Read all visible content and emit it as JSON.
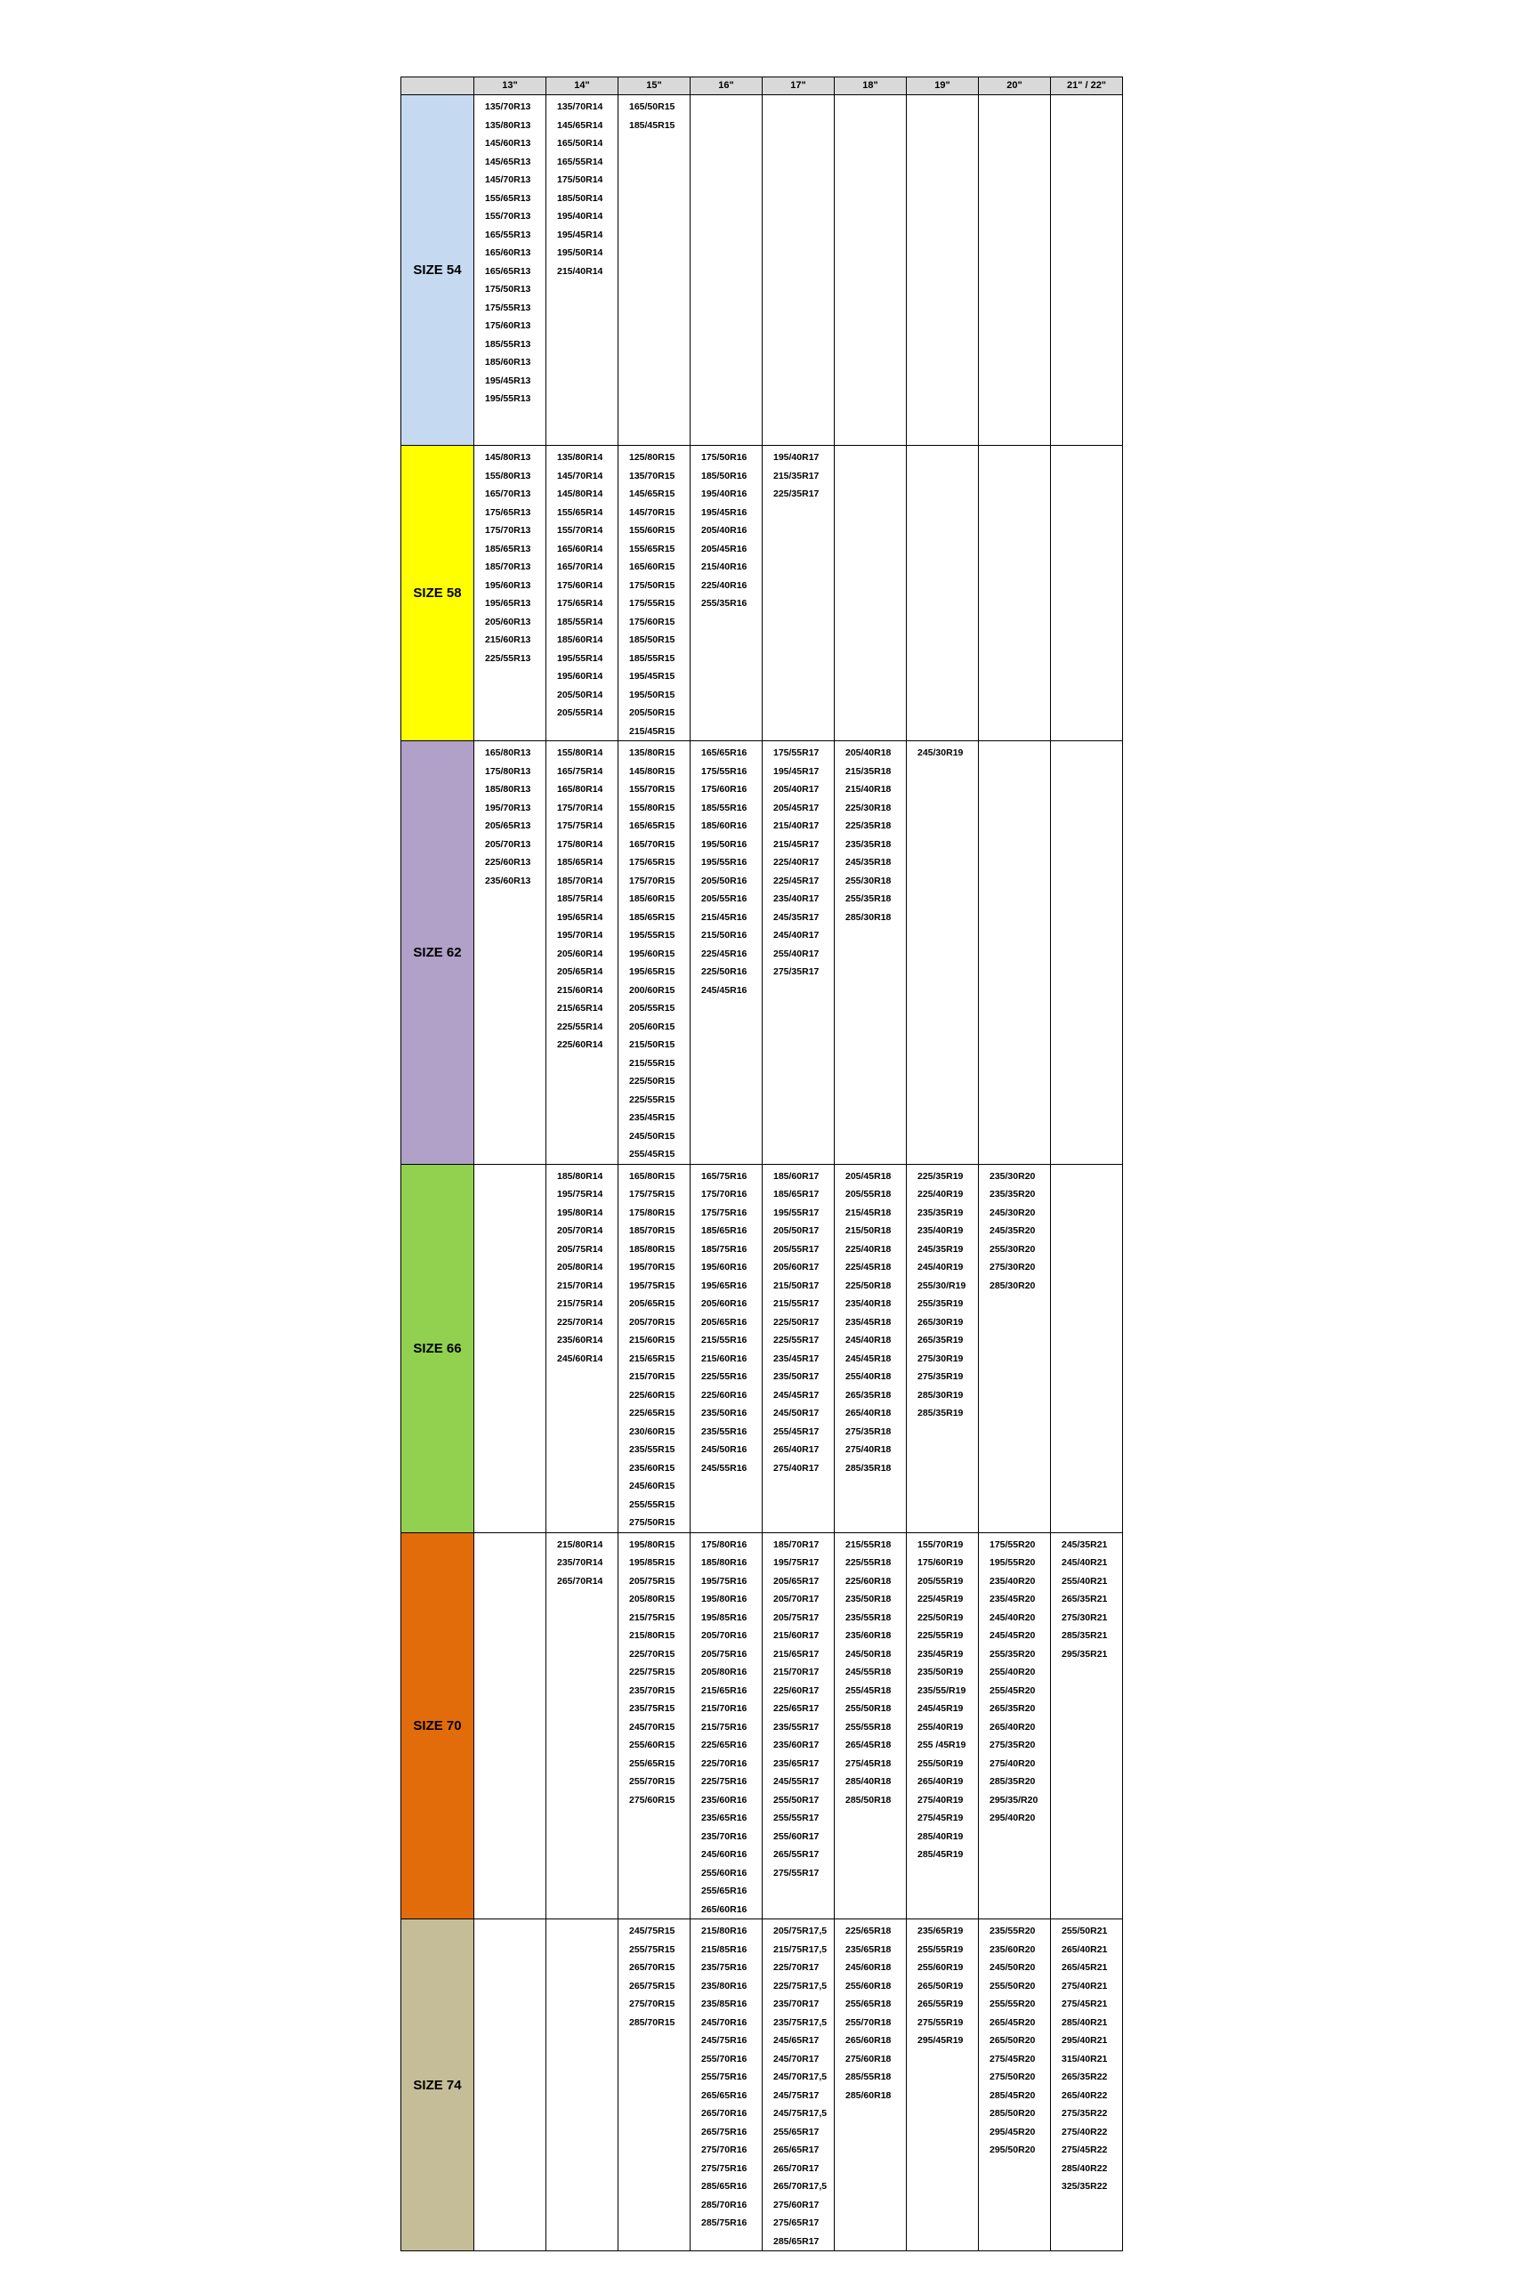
{
  "headers": [
    "",
    "13\"",
    "14\"",
    "15\"",
    "16\"",
    "17\"",
    "18\"",
    "19\"",
    "20\"",
    "21\" / 22\""
  ],
  "rows": [
    {
      "label": "SIZE 54",
      "color": "#c5d9f1",
      "cells": [
        [
          "135/70R13",
          "135/80R13",
          "145/60R13",
          "145/65R13",
          "145/70R13",
          "155/65R13",
          "155/70R13",
          "165/55R13",
          "165/60R13",
          "165/65R13",
          "175/50R13",
          "175/55R13",
          "175/60R13",
          "185/55R13",
          "185/60R13",
          "195/45R13",
          "195/55R13"
        ],
        [
          "135/70R14",
          "145/65R14",
          "165/50R14",
          "165/55R14",
          "175/50R14",
          "185/50R14",
          "195/40R14",
          "195/45R14",
          "195/50R14",
          "215/40R14"
        ],
        [
          "165/50R15",
          "185/45R15"
        ],
        [],
        [],
        [],
        [],
        [],
        []
      ]
    },
    {
      "label": "SIZE 58",
      "color": "#ffff00",
      "cells": [
        [
          "145/80R13",
          "155/80R13",
          "165/70R13",
          "175/65R13",
          "175/70R13",
          "185/65R13",
          "185/70R13",
          "195/60R13",
          "195/65R13",
          "205/60R13",
          "215/60R13",
          "225/55R13"
        ],
        [
          "135/80R14",
          "145/70R14",
          "145/80R14",
          "155/65R14",
          "155/70R14",
          "165/60R14",
          "165/70R14",
          "175/60R14",
          "175/65R14",
          "185/55R14",
          "185/60R14",
          "195/55R14",
          "195/60R14",
          "205/50R14",
          "205/55R14"
        ],
        [
          "125/80R15",
          "135/70R15",
          "145/65R15",
          "145/70R15",
          "155/60R15",
          "155/65R15",
          "165/60R15",
          "175/50R15",
          "175/55R15",
          "175/60R15",
          "185/50R15",
          "185/55R15",
          "195/45R15",
          "195/50R15",
          "205/50R15",
          "215/45R15"
        ],
        [
          "175/50R16",
          "185/50R16",
          "195/40R16",
          "195/45R16",
          "205/40R16",
          "205/45R16",
          "215/40R16",
          "225/40R16",
          "255/35R16"
        ],
        [
          "195/40R17",
          "215/35R17",
          "225/35R17"
        ],
        [],
        [],
        [],
        []
      ]
    },
    {
      "label": "SIZE 62",
      "color": "#b1a0c7",
      "cells": [
        [
          "165/80R13",
          "175/80R13",
          "185/80R13",
          "195/70R13",
          "205/65R13",
          "205/70R13",
          "225/60R13",
          "235/60R13"
        ],
        [
          "155/80R14",
          "165/75R14",
          "165/80R14",
          "175/70R14",
          "175/75R14",
          "175/80R14",
          "185/65R14",
          "185/70R14",
          "185/75R14",
          "195/65R14",
          "195/70R14",
          "205/60R14",
          "205/65R14",
          "215/60R14",
          "215/65R14",
          "225/55R14",
          "225/60R14"
        ],
        [
          "135/80R15",
          "145/80R15",
          "155/70R15",
          "155/80R15",
          "165/65R15",
          "165/70R15",
          "175/65R15",
          "175/70R15",
          "185/60R15",
          "185/65R15",
          "195/55R15",
          "195/60R15",
          "195/65R15",
          "200/60R15",
          "205/55R15",
          "205/60R15",
          "215/50R15",
          "215/55R15",
          "225/50R15",
          "225/55R15",
          "235/45R15",
          "245/50R15",
          "255/45R15"
        ],
        [
          "165/65R16",
          "175/55R16",
          "175/60R16",
          "185/55R16",
          "185/60R16",
          "195/50R16",
          "195/55R16",
          "205/50R16",
          "205/55R16",
          "215/45R16",
          "215/50R16",
          "225/45R16",
          "225/50R16",
          "245/45R16"
        ],
        [
          "175/55R17",
          "195/45R17",
          "205/40R17",
          "205/45R17",
          "215/40R17",
          "215/45R17",
          "225/40R17",
          "225/45R17",
          "235/40R17",
          "245/35R17",
          "245/40R17",
          "255/40R17",
          "275/35R17"
        ],
        [
          "205/40R18",
          "215/35R18",
          "215/40R18",
          "225/30R18",
          "225/35R18",
          "235/35R18",
          "245/35R18",
          "255/30R18",
          "255/35R18",
          "285/30R18"
        ],
        [
          "245/30R19"
        ],
        [],
        []
      ]
    },
    {
      "label": "SIZE 66",
      "color": "#92d050",
      "cells": [
        [],
        [
          "185/80R14",
          "195/75R14",
          "195/80R14",
          "205/70R14",
          "205/75R14",
          "205/80R14",
          "215/70R14",
          "215/75R14",
          "225/70R14",
          "235/60R14",
          "245/60R14"
        ],
        [
          "165/80R15",
          "175/75R15",
          "175/80R15",
          "185/70R15",
          "185/80R15",
          "195/70R15",
          "195/75R15",
          "205/65R15",
          "205/70R15",
          "215/60R15",
          "215/65R15",
          "215/70R15",
          "225/60R15",
          "225/65R15",
          "230/60R15",
          "235/55R15",
          "235/60R15",
          "245/60R15",
          "255/55R15",
          "275/50R15"
        ],
        [
          "165/75R16",
          "175/70R16",
          "175/75R16",
          "185/65R16",
          "185/75R16",
          "195/60R16",
          "195/65R16",
          "205/60R16",
          "205/65R16",
          "215/55R16",
          "215/60R16",
          "225/55R16",
          "225/60R16",
          "235/50R16",
          "235/55R16",
          "245/50R16",
          "245/55R16"
        ],
        [
          "185/60R17",
          "185/65R17",
          "195/55R17",
          "205/50R17",
          "205/55R17",
          "205/60R17",
          "215/50R17",
          "215/55R17",
          "225/50R17",
          "225/55R17",
          "235/45R17",
          "235/50R17",
          "245/45R17",
          "245/50R17",
          "255/45R17",
          "265/40R17",
          "275/40R17"
        ],
        [
          "205/45R18",
          "205/55R18",
          "215/45R18",
          "215/50R18",
          "225/40R18",
          "225/45R18",
          "225/50R18",
          "235/40R18",
          "235/45R18",
          "245/40R18",
          "245/45R18",
          "255/40R18",
          "265/35R18",
          "265/40R18",
          "275/35R18",
          "275/40R18",
          "285/35R18"
        ],
        [
          "225/35R19",
          "225/40R19",
          "235/35R19",
          "235/40R19",
          "245/35R19",
          "245/40R19",
          "255/30/R19",
          "255/35R19",
          "265/30R19",
          "265/35R19",
          "275/30R19",
          "275/35R19",
          "285/30R19",
          "285/35R19"
        ],
        [
          "235/30R20",
          "235/35R20",
          "245/30R20",
          "245/35R20",
          "255/30R20",
          "275/30R20",
          "285/30R20"
        ],
        []
      ]
    },
    {
      "label": "SIZE 70",
      "color": "#e26b0a",
      "cells": [
        [],
        [
          "215/80R14",
          "235/70R14",
          "265/70R14"
        ],
        [
          "195/80R15",
          "195/85R15",
          "205/75R15",
          "205/80R15",
          "215/75R15",
          "215/80R15",
          "225/70R15",
          "225/75R15",
          "235/70R15",
          "235/75R15",
          "245/70R15",
          "255/60R15",
          "255/65R15",
          "255/70R15",
          "275/60R15"
        ],
        [
          "175/80R16",
          "185/80R16",
          "195/75R16",
          "195/80R16",
          "195/85R16",
          "205/70R16",
          "205/75R16",
          "205/80R16",
          "215/65R16",
          "215/70R16",
          "215/75R16",
          "225/65R16",
          "225/70R16",
          "225/75R16",
          "235/60R16",
          "235/65R16",
          "235/70R16",
          "245/60R16",
          "255/60R16",
          "255/65R16",
          "265/60R16"
        ],
        [
          "185/70R17",
          "195/75R17",
          "205/65R17",
          "205/70R17",
          "205/75R17",
          "215/60R17",
          "215/65R17",
          "215/70R17",
          "225/60R17",
          "225/65R17",
          "235/55R17",
          "235/60R17",
          "235/65R17",
          "245/55R17",
          "255/50R17",
          "255/55R17",
          "255/60R17",
          "265/55R17",
          "275/55R17"
        ],
        [
          "215/55R18",
          "225/55R18",
          "225/60R18",
          "235/50R18",
          "235/55R18",
          "235/60R18",
          "245/50R18",
          "245/55R18",
          "255/45R18",
          "255/50R18",
          "255/55R18",
          "265/45R18",
          "275/45R18",
          "285/40R18",
          "285/50R18"
        ],
        [
          "155/70R19",
          "175/60R19",
          "205/55R19",
          "225/45R19",
          "225/50R19",
          "225/55R19",
          "235/45R19",
          "235/50R19",
          "235/55/R19",
          "245/45R19",
          "255/40R19",
          "255 /45R19",
          "255/50R19",
          "265/40R19",
          "275/40R19",
          "275/45R19",
          "285/40R19",
          "285/45R19"
        ],
        [
          "175/55R20",
          "195/55R20",
          "235/40R20",
          "235/45R20",
          "245/40R20",
          "245/45R20",
          "255/35R20",
          "255/40R20",
          "255/45R20",
          "265/35R20",
          "265/40R20",
          "275/35R20",
          "275/40R20",
          "285/35R20",
          "295/35/R20",
          "295/40R20"
        ],
        [
          "245/35R21",
          "245/40R21",
          "255/40R21",
          "265/35R21",
          "275/30R21",
          "285/35R21",
          "295/35R21"
        ]
      ]
    },
    {
      "label": "SIZE 74",
      "color": "#c4bd97",
      "cells": [
        [],
        [],
        [
          "245/75R15",
          "255/75R15",
          "265/70R15",
          "265/75R15",
          "275/70R15",
          "285/70R15"
        ],
        [
          "215/80R16",
          "215/85R16",
          "235/75R16",
          "235/80R16",
          "235/85R16",
          "245/70R16",
          "245/75R16",
          "255/70R16",
          "255/75R16",
          "265/65R16",
          "265/70R16",
          "265/75R16",
          "275/70R16",
          "275/75R16",
          "285/65R16",
          "285/70R16",
          "285/75R16"
        ],
        [
          "205/75R17,5",
          "215/75R17,5",
          "225/70R17",
          "225/75R17,5",
          "235/70R17",
          "235/75R17,5",
          "245/65R17",
          "245/70R17",
          "245/70R17,5",
          "245/75R17",
          "245/75R17,5",
          "255/65R17",
          "265/65R17",
          "265/70R17",
          "265/70R17,5",
          "275/60R17",
          "275/65R17",
          "285/65R17"
        ],
        [
          "225/65R18",
          "235/65R18",
          "245/60R18",
          "255/60R18",
          "255/65R18",
          "255/70R18",
          "265/60R18",
          "275/60R18",
          "285/55R18",
          "285/60R18"
        ],
        [
          "235/65R19",
          "255/55R19",
          "255/60R19",
          "265/50R19",
          "265/55R19",
          "275/55R19",
          "295/45R19"
        ],
        [
          "235/55R20",
          "235/60R20",
          "245/50R20",
          "255/50R20",
          "255/55R20",
          "265/45R20",
          "265/50R20",
          "275/45R20",
          "275/50R20",
          "285/45R20",
          "285/50R20",
          "295/45R20",
          "295/50R20"
        ],
        [
          "255/50R21",
          "265/40R21",
          "265/45R21",
          "275/40R21",
          "275/45R21",
          "285/40R21",
          "295/40R21",
          "315/40R21",
          "265/35R22",
          "265/40R22",
          "275/35R22",
          "275/40R22",
          "275/45R22",
          "285/40R22",
          "325/35R22"
        ]
      ]
    }
  ]
}
